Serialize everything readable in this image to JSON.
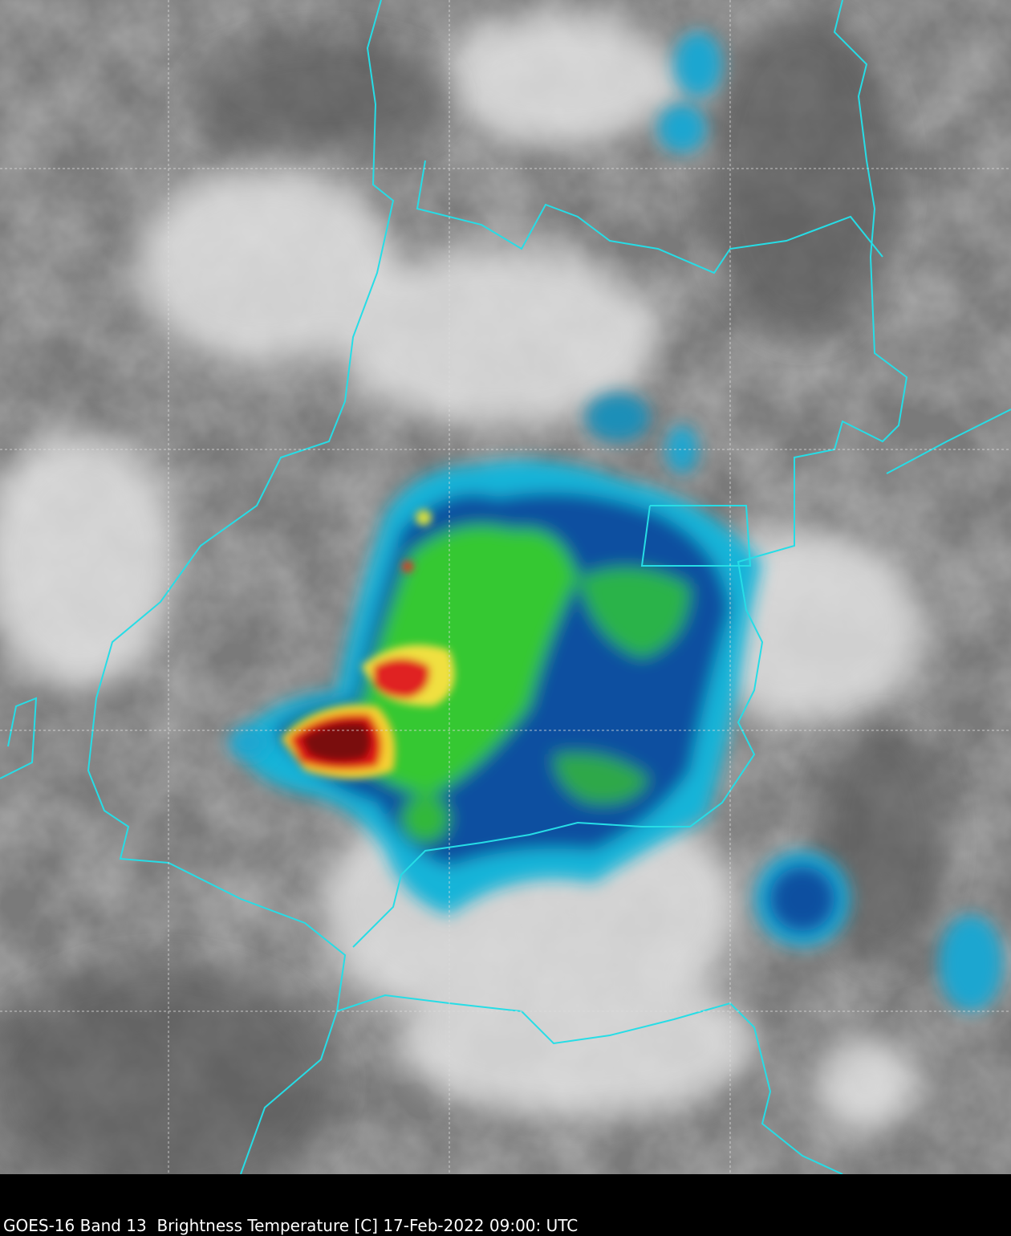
{
  "caption": "GOES-16 Band 13  Brightness Temperature [C] 17-Feb-2022 09:00: UTC"
}
